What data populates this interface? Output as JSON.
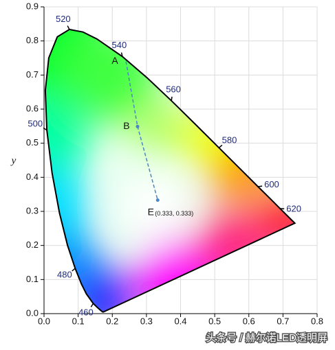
{
  "chart_data": {
    "type": "chromaticity",
    "y_label": "y",
    "xlim": [
      0,
      0.8
    ],
    "ylim": [
      0,
      0.9
    ],
    "xticks": [
      {
        "value": 0,
        "label": "0.0"
      },
      0.1,
      0.2,
      0.3,
      0.4,
      0.5,
      0.6,
      0.7,
      0.8
    ],
    "yticks": [
      {
        "value": 0,
        "label": "0.0"
      },
      0.1,
      0.2,
      0.3,
      0.4,
      0.5,
      0.6,
      0.7,
      0.8,
      0.9
    ],
    "grid": true,
    "locus": {
      "color": "#000000",
      "x": [
        0.1741,
        0.1714,
        0.1644,
        0.1566,
        0.144,
        0.1241,
        0.1096,
        0.0913,
        0.0687,
        0.0454,
        0.0235,
        0.0082,
        0.0039,
        0.0139,
        0.0389,
        0.0743,
        0.1142,
        0.1547,
        0.2296,
        0.3016,
        0.3731,
        0.4441,
        0.5125,
        0.5752,
        0.627,
        0.6658,
        0.6915,
        0.719,
        0.7347
      ],
      "y": [
        0.005,
        0.0051,
        0.0109,
        0.0177,
        0.0297,
        0.0578,
        0.0868,
        0.1327,
        0.2007,
        0.295,
        0.4127,
        0.5384,
        0.6548,
        0.7502,
        0.812,
        0.8338,
        0.8262,
        0.8059,
        0.7543,
        0.6923,
        0.6245,
        0.5547,
        0.4866,
        0.4242,
        0.3725,
        0.334,
        0.3083,
        0.2809,
        0.2653
      ],
      "wavelengths": [
        null,
        null,
        null,
        null,
        460,
        null,
        null,
        480,
        null,
        null,
        null,
        500,
        null,
        null,
        null,
        520,
        null,
        null,
        540,
        null,
        560,
        null,
        580,
        null,
        600,
        null,
        620,
        null,
        null
      ]
    },
    "points": {
      "color": "#4a86c5",
      "names": [
        "A",
        "B",
        "E"
      ],
      "x": [
        0.24,
        0.274,
        0.333
      ],
      "y": [
        0.74,
        0.549,
        0.333
      ],
      "value_labels": [
        null,
        null,
        "(0.333, 0.333)"
      ]
    },
    "watermark": "头条号 / 赫尔诺LED透明屏"
  }
}
